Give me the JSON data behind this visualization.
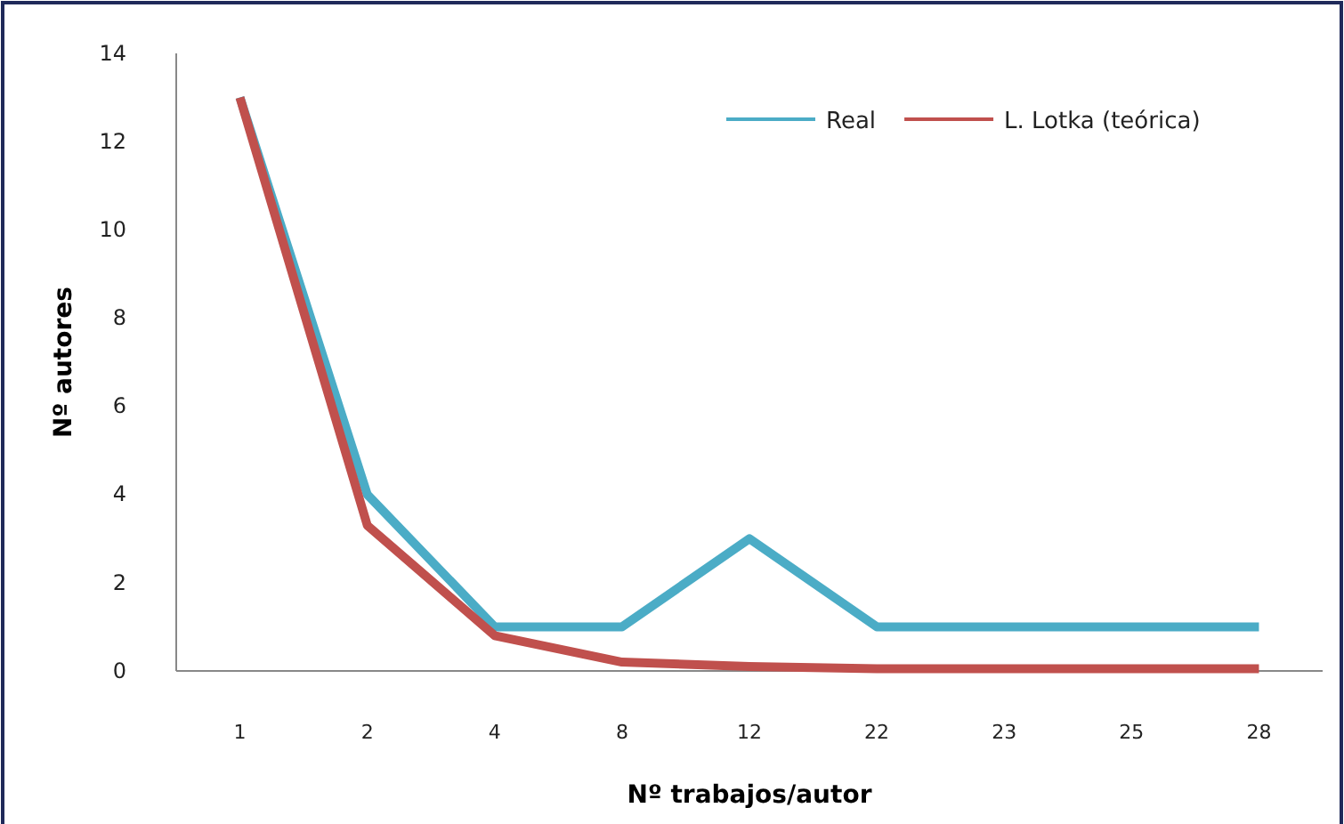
{
  "chart_data": {
    "type": "line",
    "xlabel": "Nº trabajos/autor",
    "ylabel": "Nº autores",
    "categories": [
      "1",
      "2",
      "4",
      "8",
      "12",
      "22",
      "23",
      "25",
      "28"
    ],
    "series": [
      {
        "name": "Real",
        "color": "#4bacc6",
        "values": [
          13,
          4,
          1,
          1,
          3,
          1,
          1,
          1,
          1
        ]
      },
      {
        "name": "L. Lotka (teórica)",
        "color": "#c0504d",
        "values": [
          13,
          3.3,
          0.8,
          0.2,
          0.1,
          0.05,
          0.05,
          0.05,
          0.05
        ]
      }
    ],
    "ylim": [
      0,
      14
    ],
    "yticks": [
      0,
      2,
      4,
      6,
      8,
      10,
      12,
      14
    ],
    "grid": false,
    "legend": "top right",
    "marker": "none",
    "line_style": "solid"
  }
}
